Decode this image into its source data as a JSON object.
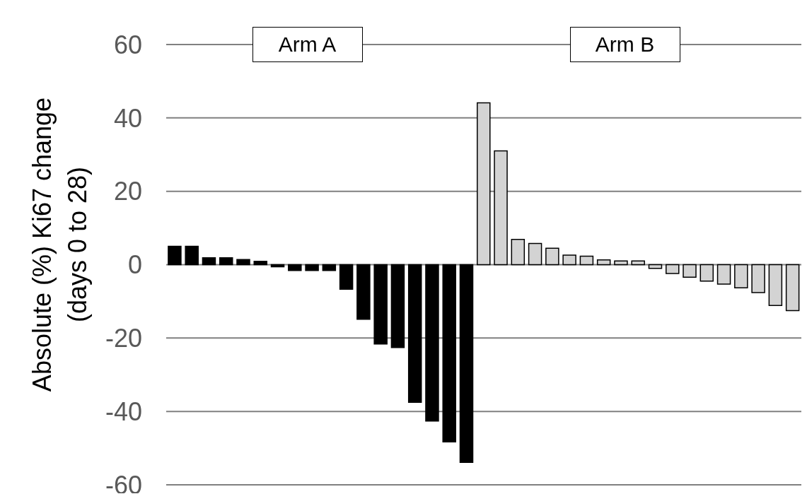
{
  "chart_data": {
    "type": "bar",
    "ylabel": "Absolute (%) Ki67 change\n(days 0 to 28)",
    "categories": [
      null,
      null,
      null,
      null,
      null,
      null,
      null,
      null,
      null,
      null,
      null,
      null,
      null,
      null,
      null,
      null,
      null,
      null,
      null,
      null,
      null,
      null,
      null,
      null,
      null,
      null,
      null,
      null,
      null,
      null,
      null,
      null,
      null,
      null,
      null,
      null,
      null
    ],
    "values": [
      5.0,
      5.0,
      1.9,
      1.9,
      1.4,
      0.9,
      -0.6,
      -1.6,
      -1.6,
      -1.6,
      -6.7,
      -14.9,
      -21.6,
      -22.6,
      -37.5,
      -42.6,
      -48.3,
      -53.9,
      44.1,
      31.0,
      6.9,
      5.8,
      4.5,
      2.6,
      2.3,
      1.3,
      1.0,
      1.0,
      -1.0,
      -2.4,
      -3.4,
      -4.5,
      -5.3,
      -6.3,
      -7.6,
      -11.1,
      -12.5
    ],
    "colors": [
      "#000000",
      "#000000",
      "#000000",
      "#000000",
      "#000000",
      "#000000",
      "#000000",
      "#000000",
      "#000000",
      "#000000",
      "#000000",
      "#000000",
      "#000000",
      "#000000",
      "#000000",
      "#000000",
      "#000000",
      "#000000",
      "#d3d3d3",
      "#d3d3d3",
      "#d3d3d3",
      "#d3d3d3",
      "#d3d3d3",
      "#d3d3d3",
      "#d3d3d3",
      "#d3d3d3",
      "#d3d3d3",
      "#d3d3d3",
      "#d3d3d3",
      "#d3d3d3",
      "#d3d3d3",
      "#d3d3d3",
      "#d3d3d3",
      "#d3d3d3",
      "#d3d3d3",
      "#d3d3d3",
      "#d3d3d3"
    ],
    "annotations": [
      "Arm A",
      "Arm B"
    ],
    "ylim": [
      -60,
      60
    ],
    "yticks": [
      -60,
      -40,
      -20,
      0,
      20,
      40,
      60
    ],
    "grid": "y"
  }
}
